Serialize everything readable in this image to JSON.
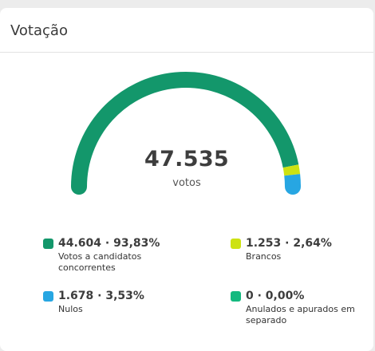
{
  "card": {
    "title": "Votação"
  },
  "gauge": {
    "total": "47.535",
    "unit": "votos"
  },
  "legend": [
    {
      "value": "44.604 · 93,83%",
      "label": "Votos a candidatos concorrentes",
      "color": "#13976b"
    },
    {
      "value": "1.253 · 2,64%",
      "label": "Brancos",
      "color": "#cde212"
    },
    {
      "value": "1.678 · 3,53%",
      "label": "Nulos",
      "color": "#27a6e2"
    },
    {
      "value": "0 · 0,00%",
      "label": "Anulados e apurados em separado",
      "color": "#14b97f"
    }
  ],
  "chart_data": {
    "type": "pie",
    "total": 47535,
    "series": [
      {
        "name": "Votos a candidatos concorrentes",
        "value": 44604,
        "percent": 93.83,
        "color": "#13976b"
      },
      {
        "name": "Brancos",
        "value": 1253,
        "percent": 2.64,
        "color": "#cde212"
      },
      {
        "name": "Nulos",
        "value": 1678,
        "percent": 3.53,
        "color": "#27a6e2"
      },
      {
        "name": "Anulados e apurados em separado",
        "value": 0,
        "percent": 0.0,
        "color": "#14b97f"
      }
    ],
    "legend_position": "bottom"
  }
}
